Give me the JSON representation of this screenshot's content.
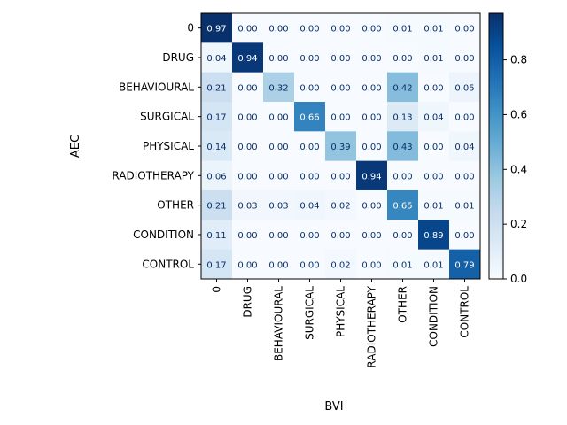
{
  "chart_data": {
    "type": "heatmap",
    "title": "",
    "xlabel": "BVI",
    "ylabel": "AEC",
    "x_categories": [
      "0",
      "DRUG",
      "BEHAVIOURAL",
      "SURGICAL",
      "PHYSICAL",
      "RADIOTHERAPY",
      "OTHER",
      "CONDITION",
      "CONTROL"
    ],
    "y_categories": [
      "0",
      "DRUG",
      "BEHAVIOURAL",
      "SURGICAL",
      "PHYSICAL",
      "RADIOTHERAPY",
      "OTHER",
      "CONDITION",
      "CONTROL"
    ],
    "values": [
      [
        0.97,
        0.0,
        0.0,
        0.0,
        0.0,
        0.0,
        0.01,
        0.01,
        0.0
      ],
      [
        0.04,
        0.94,
        0.0,
        0.0,
        0.0,
        0.0,
        0.0,
        0.01,
        0.0
      ],
      [
        0.21,
        0.0,
        0.32,
        0.0,
        0.0,
        0.0,
        0.42,
        0.0,
        0.05
      ],
      [
        0.17,
        0.0,
        0.0,
        0.66,
        0.0,
        0.0,
        0.13,
        0.04,
        0.0
      ],
      [
        0.14,
        0.0,
        0.0,
        0.0,
        0.39,
        0.0,
        0.43,
        0.0,
        0.04
      ],
      [
        0.06,
        0.0,
        0.0,
        0.0,
        0.0,
        0.94,
        0.0,
        0.0,
        0.0
      ],
      [
        0.21,
        0.03,
        0.03,
        0.04,
        0.02,
        0.0,
        0.65,
        0.01,
        0.01
      ],
      [
        0.11,
        0.0,
        0.0,
        0.0,
        0.0,
        0.0,
        0.0,
        0.89,
        0.0
      ],
      [
        0.17,
        0.0,
        0.0,
        0.0,
        0.02,
        0.0,
        0.01,
        0.01,
        0.79
      ]
    ],
    "colormap": "Blues",
    "vmin": 0,
    "vmax": 0.97,
    "colorbar_ticks": [
      "0.0",
      "0.2",
      "0.4",
      "0.6",
      "0.8"
    ],
    "colorbar_tick_values": [
      0.0,
      0.2,
      0.4,
      0.6,
      0.8
    ],
    "grid": false
  }
}
